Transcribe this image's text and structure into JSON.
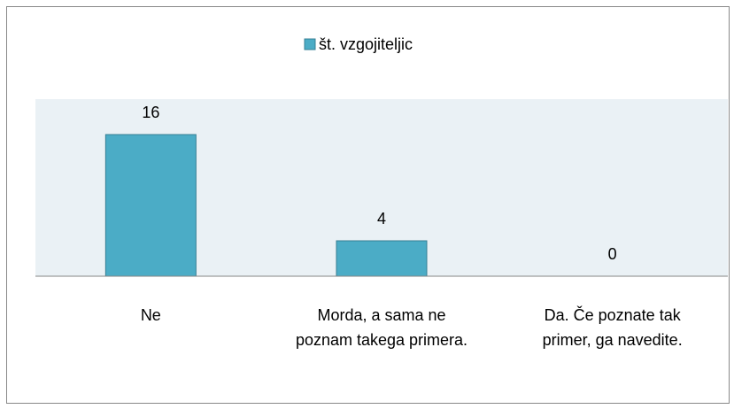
{
  "chart_data": {
    "type": "bar",
    "categories": [
      "Ne",
      "Morda, a sama ne poznam takega primera.",
      "Da. Če poznate tak primer, ga navedite."
    ],
    "series": [
      {
        "name": "št. vzgojiteljic",
        "color": "#4bacc6",
        "values": [
          16,
          4,
          0
        ]
      }
    ],
    "ylim": [
      0,
      20
    ],
    "legend": "top"
  }
}
